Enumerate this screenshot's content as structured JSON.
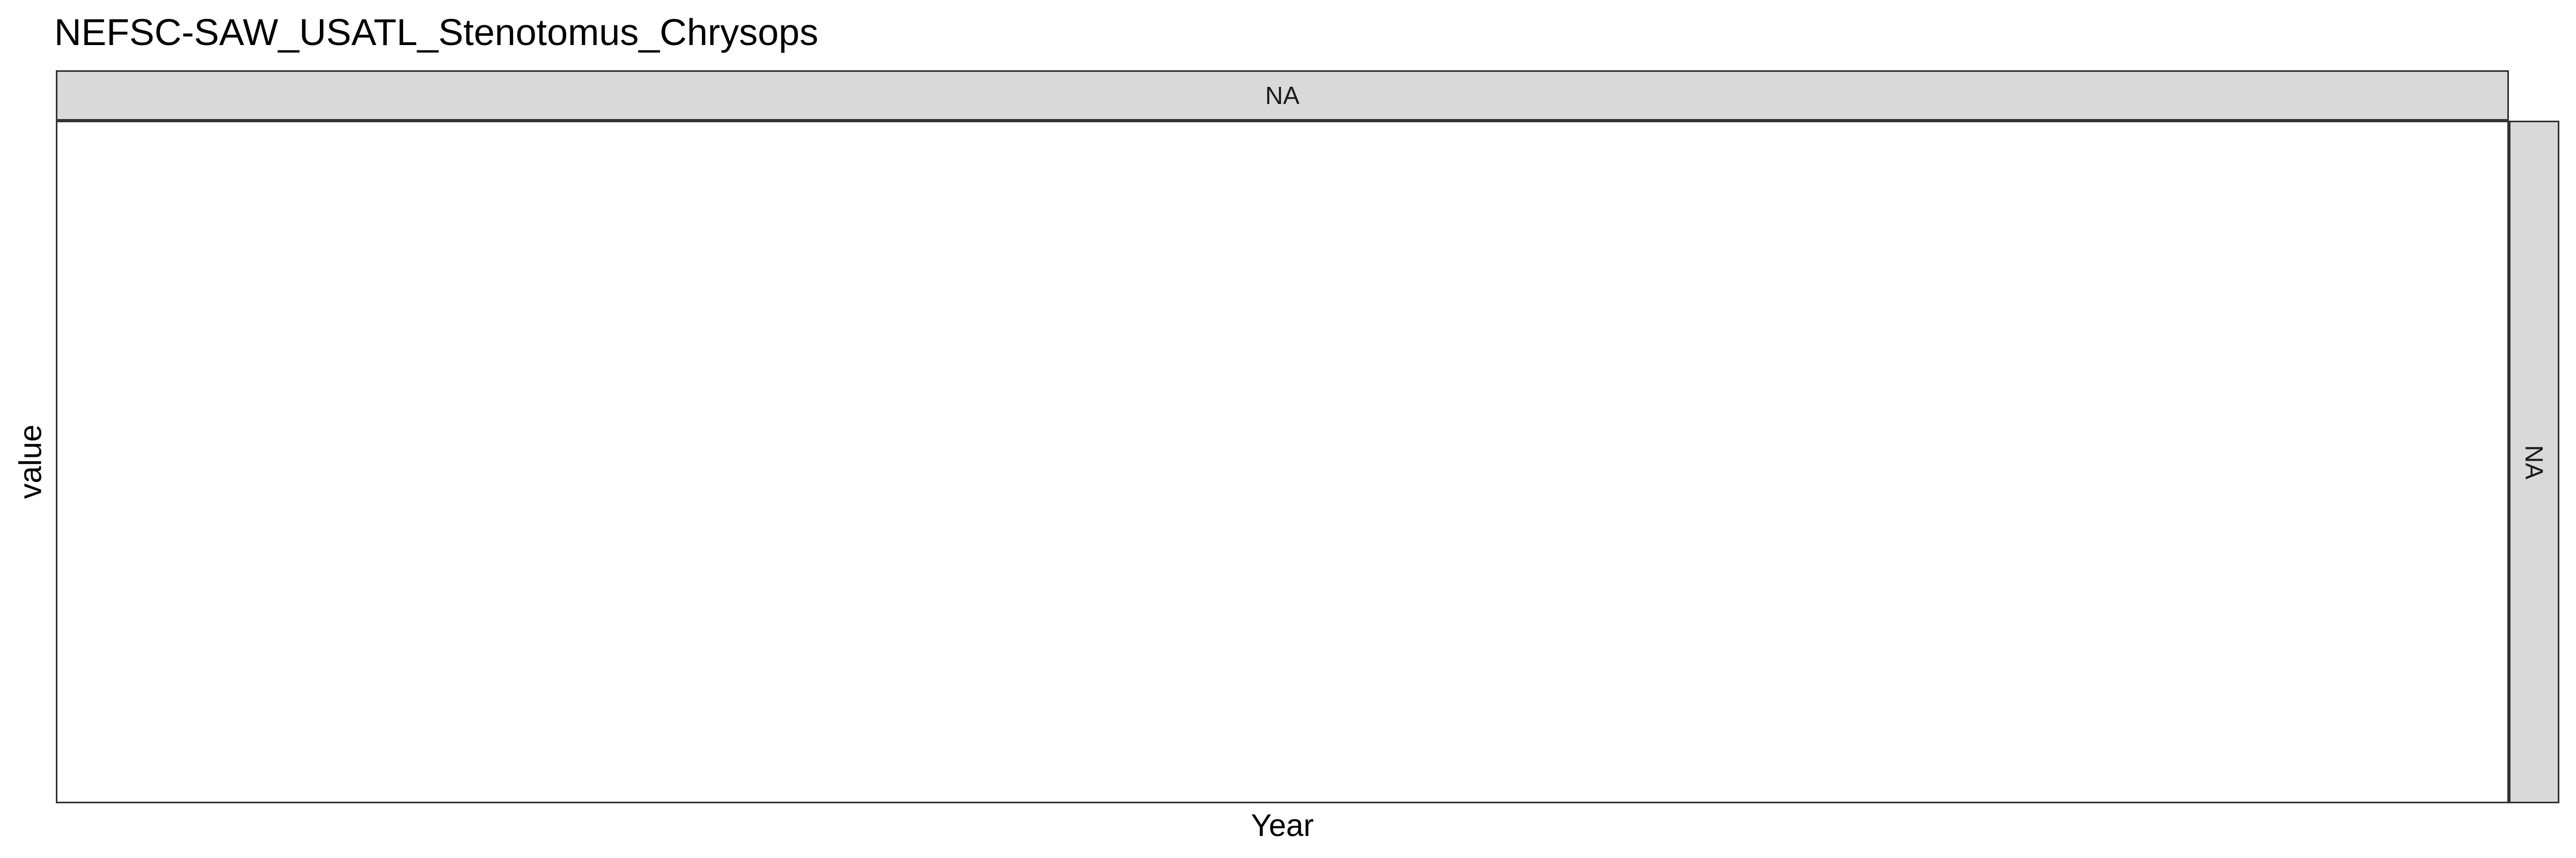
{
  "chart_data": {
    "type": "line",
    "title": "NEFSC-SAW_USATL_Stenotomus_Chrysops",
    "xlabel": "Year",
    "ylabel": "value",
    "facet_top_label": "NA",
    "facet_right_label": "NA",
    "series": [],
    "grid": false
  }
}
